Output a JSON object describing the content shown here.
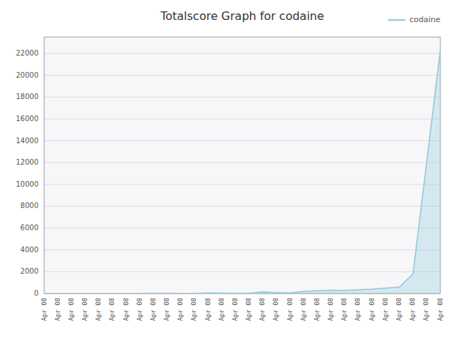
{
  "chart_data": {
    "type": "area",
    "title": "Totalscore Graph for codaine",
    "categories": [
      "Apr 08",
      "Apr 08",
      "Apr 08",
      "Apr 08",
      "Apr 08",
      "Apr 08",
      "Apr 08",
      "Apr 08",
      "Apr 08",
      "Apr 08",
      "Apr 08",
      "Apr 08",
      "Apr 08",
      "Apr 08",
      "Apr 08",
      "Apr 08",
      "Apr 08",
      "Apr 08",
      "Apr 08",
      "Apr 08",
      "Apr 08",
      "Apr 08",
      "Apr 08",
      "Apr 08",
      "Apr 08",
      "Apr 08",
      "Apr 08",
      "Apr 08",
      "Apr 08",
      "Apr 08"
    ],
    "series": [
      {
        "name": "codaine",
        "color": "#99ccdd",
        "values": [
          0,
          0,
          0,
          0,
          0,
          0,
          0,
          10,
          30,
          20,
          10,
          5,
          50,
          40,
          30,
          20,
          150,
          80,
          60,
          200,
          250,
          300,
          280,
          350,
          400,
          500,
          600,
          1800,
          12000,
          22300
        ]
      }
    ],
    "ylim": [
      0,
      23500
    ],
    "yticks": [
      0,
      2000,
      4000,
      6000,
      8000,
      10000,
      12000,
      14000,
      16000,
      18000,
      20000,
      22000
    ],
    "grid": true,
    "legend": "top-right"
  }
}
